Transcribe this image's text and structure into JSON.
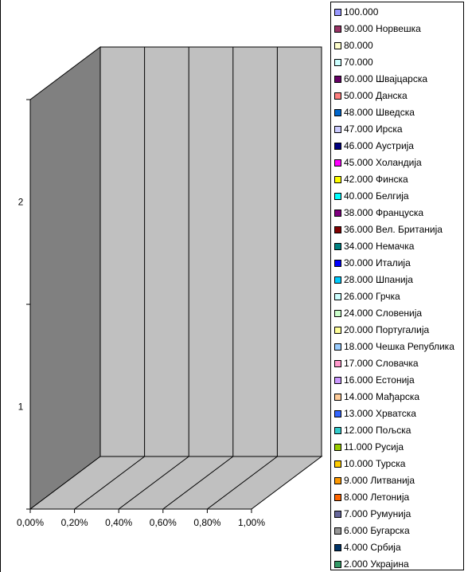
{
  "chart_data": {
    "type": "bar",
    "view": "3d",
    "orientation": "horizontal",
    "x_ticks": [
      "0,00%",
      "0,20%",
      "0,40%",
      "0,60%",
      "0,80%",
      "1,00%"
    ],
    "y_ticks": [
      "1",
      "2"
    ],
    "xlim": [
      0,
      1
    ],
    "grid": true,
    "legend_position": "right",
    "wall_color": "#c0c0c0",
    "side_wall_color": "#808080",
    "floor_color": "#c0c0c0",
    "legend": [
      {
        "label": "100.000",
        "color": "#9999ff"
      },
      {
        "label": "90.000 Норвешка",
        "color": "#993366"
      },
      {
        "label": "80.000",
        "color": "#ffffcc"
      },
      {
        "label": "70.000",
        "color": "#ccffff"
      },
      {
        "label": "60.000 Швајцарска",
        "color": "#660066"
      },
      {
        "label": "50.000 Данска",
        "color": "#ff8080"
      },
      {
        "label": "48.000 Шведска",
        "color": "#0066cc"
      },
      {
        "label": "47.000 Ирска",
        "color": "#ccccff"
      },
      {
        "label": "46.000 Аустрија",
        "color": "#000080"
      },
      {
        "label": "45.000 Холандија",
        "color": "#ff00ff"
      },
      {
        "label": "42.000 Финска",
        "color": "#ffff00"
      },
      {
        "label": "40.000 Белгија",
        "color": "#00ffff"
      },
      {
        "label": "38.000 Француска",
        "color": "#800080"
      },
      {
        "label": "36.000 Вел. Британија",
        "color": "#800000"
      },
      {
        "label": "34.000 Немачка",
        "color": "#008080"
      },
      {
        "label": "30.000 Италија",
        "color": "#0000ff"
      },
      {
        "label": "28.000 Шпанија",
        "color": "#00ccff"
      },
      {
        "label": "26.000 Грчка",
        "color": "#ccffff"
      },
      {
        "label": "24.000 Словенија",
        "color": "#ccffcc"
      },
      {
        "label": "20.000 Португалија",
        "color": "#ffff99"
      },
      {
        "label": "18.000 Чешка Република",
        "color": "#99ccff"
      },
      {
        "label": "17.000 Словачка",
        "color": "#ff99cc"
      },
      {
        "label": "16.000 Естонија",
        "color": "#cc99ff"
      },
      {
        "label": "14.000 Мађарска",
        "color": "#ffcc99"
      },
      {
        "label": "13.000 Хрватска",
        "color": "#3366ff"
      },
      {
        "label": "12.000 Пољска",
        "color": "#33cccc"
      },
      {
        "label": "11.000 Русија",
        "color": "#99cc00"
      },
      {
        "label": "10.000 Турска",
        "color": "#ffcc00"
      },
      {
        "label": "9.000 Литванија",
        "color": "#ff9900"
      },
      {
        "label": "8.000 Летонија",
        "color": "#ff6600"
      },
      {
        "label": "7.000 Румунија",
        "color": "#666699"
      },
      {
        "label": "6.000 Бугарска",
        "color": "#969696"
      },
      {
        "label": "4.000 Србија",
        "color": "#003366"
      },
      {
        "label": "2.000 Украјина",
        "color": "#339966"
      }
    ]
  }
}
